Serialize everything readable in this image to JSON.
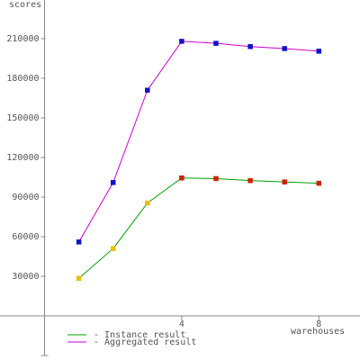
{
  "chart_data": {
    "type": "line",
    "y_label": "scores",
    "x_label": "warehouses",
    "x": [
      1,
      2,
      3,
      4,
      5,
      6,
      7,
      8
    ],
    "series": [
      {
        "name": "- Instance result",
        "color": "#00a000",
        "marker_colors": [
          "#e8c000",
          "#e8c000",
          "#e8c000",
          "#cc2200",
          "#cc2200",
          "#cc2200",
          "#cc2200",
          "#cc2200"
        ],
        "values": [
          28500,
          51000,
          85500,
          104500,
          104000,
          102500,
          101500,
          100500
        ]
      },
      {
        "name": "- Aggregated result",
        "color": "#cc00cc",
        "marker_colors": [
          "#1010cc",
          "#1010cc",
          "#1010cc",
          "#1010cc",
          "#1010cc",
          "#1010cc",
          "#1010cc",
          "#1010cc"
        ],
        "values": [
          56000,
          101000,
          171000,
          208000,
          206500,
          204000,
          202500,
          200500
        ]
      }
    ],
    "xlim": [
      -1.3,
      9.2
    ],
    "ylim": [
      -33400,
      239300
    ],
    "xticks": [
      4,
      8
    ],
    "yticks": [
      30000,
      60000,
      90000,
      120000,
      150000,
      180000,
      210000
    ]
  }
}
